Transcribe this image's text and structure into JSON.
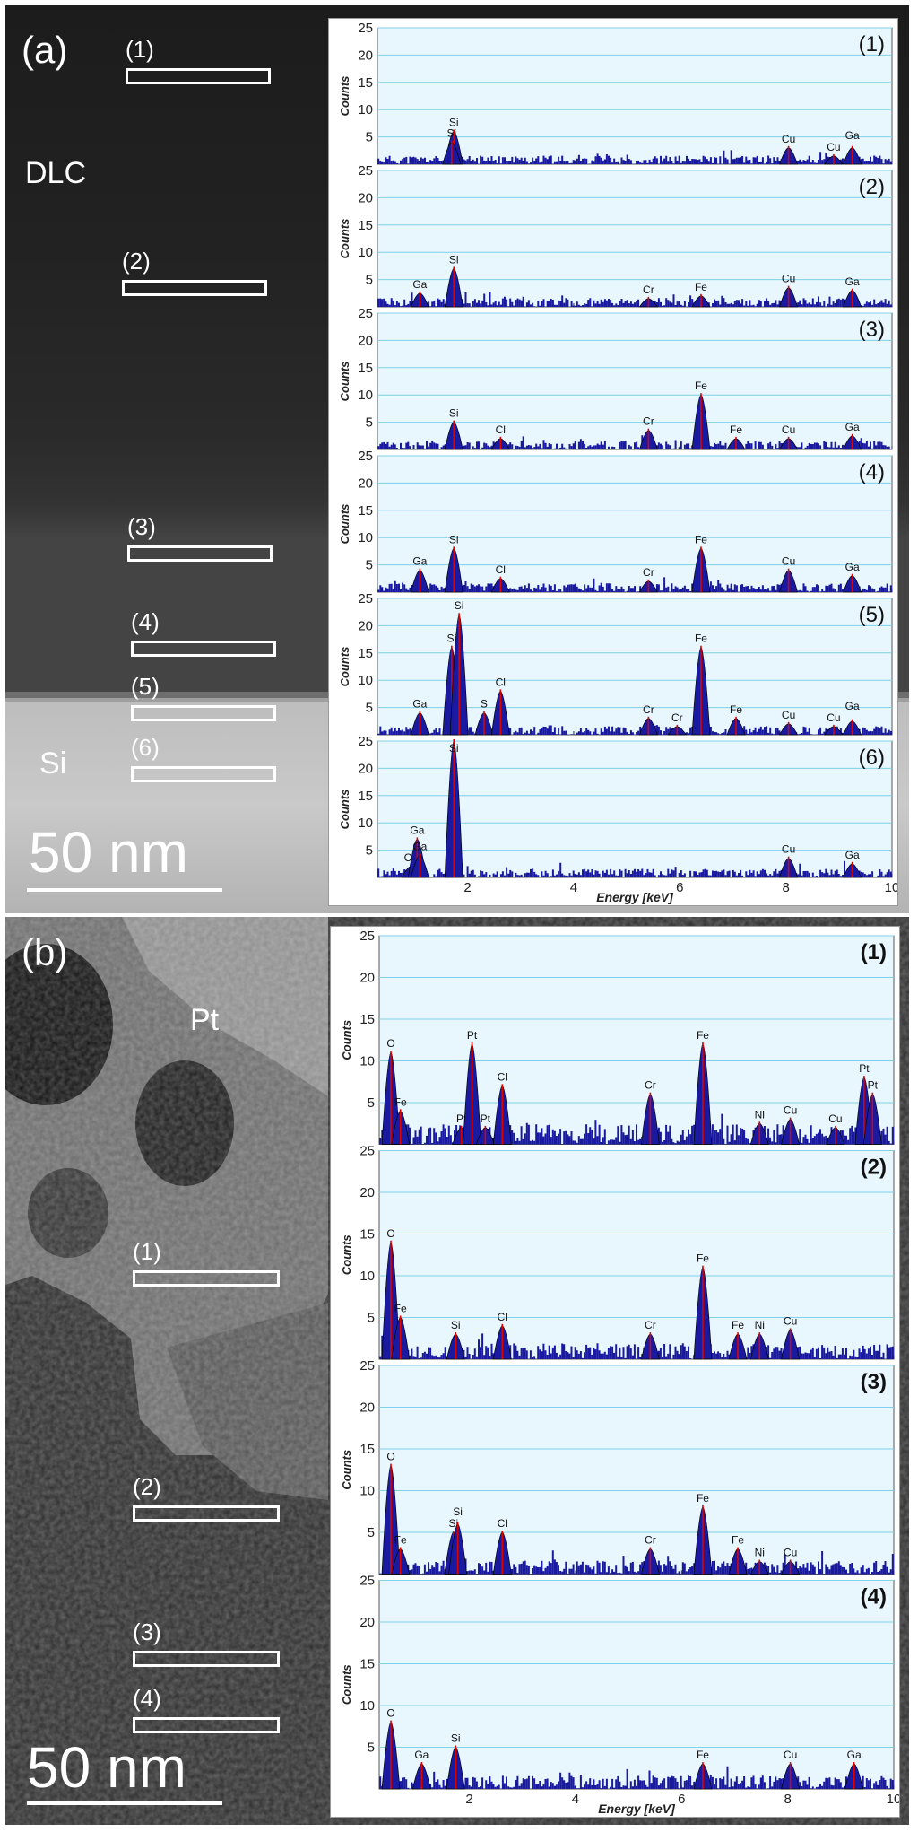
{
  "panel_a": {
    "letter": "(a)",
    "regions": [
      "(1)",
      "(2)",
      "(3)",
      "(4)",
      "(5)",
      "(6)"
    ],
    "layer_top": "DLC",
    "layer_bottom": "Si",
    "scale_label": "50 nm"
  },
  "panel_b": {
    "letter": "(b)",
    "regions": [
      "(1)",
      "(2)",
      "(3)",
      "(4)"
    ],
    "layer_top": "Pt",
    "scale_label": "50 nm"
  },
  "colors": {
    "plot_bg": "#e8f6fd",
    "grid": "#7fd0e8",
    "bars": "#1a1aa0",
    "marker": "#e00000"
  },
  "chart_data": [
    {
      "type": "bar",
      "panel": "a",
      "xlabel": "Energy [keV]",
      "ylabel": "Counts",
      "xlim": [
        0.3,
        10
      ],
      "ylim": [
        0,
        25
      ],
      "xticks": [
        2,
        4,
        6,
        8,
        10
      ],
      "yticks": [
        5,
        10,
        15,
        20,
        25
      ],
      "grid": true,
      "spectra": [
        {
          "name": "(1)",
          "peaks": [
            {
              "label": "Si",
              "x": 1.74,
              "y": 6
            },
            {
              "label": "Si",
              "x": 1.7,
              "y": 4
            },
            {
              "label": "Cu",
              "x": 8.05,
              "y": 3
            },
            {
              "label": "Cu",
              "x": 8.9,
              "y": 1.5
            },
            {
              "label": "Ga",
              "x": 9.25,
              "y": 3
            }
          ],
          "noise": 1
        },
        {
          "name": "(2)",
          "peaks": [
            {
              "label": "Ga",
              "x": 1.1,
              "y": 2.5
            },
            {
              "label": "Si",
              "x": 1.74,
              "y": 7
            },
            {
              "label": "Cr",
              "x": 5.41,
              "y": 1.5
            },
            {
              "label": "Fe",
              "x": 6.4,
              "y": 2
            },
            {
              "label": "Cu",
              "x": 8.05,
              "y": 3.5
            },
            {
              "label": "Ga",
              "x": 9.25,
              "y": 3
            }
          ],
          "noise": 1
        },
        {
          "name": "(3)",
          "peaks": [
            {
              "label": "Si",
              "x": 1.74,
              "y": 5
            },
            {
              "label": "Cl",
              "x": 2.62,
              "y": 2
            },
            {
              "label": "Cr",
              "x": 5.41,
              "y": 3.5
            },
            {
              "label": "Fe",
              "x": 6.4,
              "y": 10
            },
            {
              "label": "Fe",
              "x": 7.06,
              "y": 2
            },
            {
              "label": "Cu",
              "x": 8.05,
              "y": 2
            },
            {
              "label": "Ga",
              "x": 9.25,
              "y": 2.5
            }
          ],
          "noise": 1
        },
        {
          "name": "(4)",
          "peaks": [
            {
              "label": "Ga",
              "x": 1.1,
              "y": 4
            },
            {
              "label": "Si",
              "x": 1.74,
              "y": 8
            },
            {
              "label": "Cl",
              "x": 2.62,
              "y": 2.5
            },
            {
              "label": "Cr",
              "x": 5.41,
              "y": 2
            },
            {
              "label": "Fe",
              "x": 6.4,
              "y": 8
            },
            {
              "label": "Cu",
              "x": 8.05,
              "y": 4
            },
            {
              "label": "Ga",
              "x": 9.25,
              "y": 3
            }
          ],
          "noise": 1
        },
        {
          "name": "(5)",
          "peaks": [
            {
              "label": "Ga",
              "x": 1.1,
              "y": 4
            },
            {
              "label": "Si",
              "x": 1.7,
              "y": 16
            },
            {
              "label": "Si",
              "x": 1.84,
              "y": 22
            },
            {
              "label": "S",
              "x": 2.31,
              "y": 4
            },
            {
              "label": "Cl",
              "x": 2.62,
              "y": 8
            },
            {
              "label": "Cr",
              "x": 5.41,
              "y": 3
            },
            {
              "label": "Cr",
              "x": 5.95,
              "y": 1.5
            },
            {
              "label": "Fe",
              "x": 6.4,
              "y": 16
            },
            {
              "label": "Fe",
              "x": 7.06,
              "y": 3
            },
            {
              "label": "Cu",
              "x": 8.05,
              "y": 2
            },
            {
              "label": "Cu",
              "x": 8.9,
              "y": 1.5
            },
            {
              "label": "Ga",
              "x": 9.25,
              "y": 2.5
            }
          ],
          "noise": 1
        },
        {
          "name": "(6)",
          "peaks": [
            {
              "label": "Cu",
              "x": 0.93,
              "y": 2
            },
            {
              "label": "Ga",
              "x": 1.05,
              "y": 7
            },
            {
              "label": "Ga",
              "x": 1.1,
              "y": 4
            },
            {
              "label": "Si",
              "x": 1.74,
              "y": 25
            },
            {
              "label": "Cu",
              "x": 8.05,
              "y": 3.5
            },
            {
              "label": "Ga",
              "x": 9.25,
              "y": 2.5
            }
          ],
          "noise": 1
        }
      ]
    },
    {
      "type": "bar",
      "panel": "b",
      "xlabel": "Energy [keV]",
      "ylabel": "Counts",
      "xlim": [
        0.3,
        10
      ],
      "ylim": [
        0,
        25
      ],
      "xticks": [
        2,
        4,
        6,
        8,
        10
      ],
      "yticks": [
        5,
        10,
        15,
        20,
        25
      ],
      "grid": true,
      "spectra": [
        {
          "name": "(1)",
          "peaks": [
            {
              "label": "O",
              "x": 0.52,
              "y": 11
            },
            {
              "label": "Fe",
              "x": 0.7,
              "y": 4
            },
            {
              "label": "Pt",
              "x": 1.85,
              "y": 2
            },
            {
              "label": "Pt",
              "x": 2.05,
              "y": 12
            },
            {
              "label": "Pt",
              "x": 2.3,
              "y": 2
            },
            {
              "label": "Cl",
              "x": 2.62,
              "y": 7
            },
            {
              "label": "Cr",
              "x": 5.41,
              "y": 6
            },
            {
              "label": "Fe",
              "x": 6.4,
              "y": 12
            },
            {
              "label": "Ni",
              "x": 7.47,
              "y": 2.5
            },
            {
              "label": "Cu",
              "x": 8.05,
              "y": 3
            },
            {
              "label": "Cu",
              "x": 8.9,
              "y": 2
            },
            {
              "label": "Pt",
              "x": 9.44,
              "y": 8
            },
            {
              "label": "Pt",
              "x": 9.6,
              "y": 6
            }
          ],
          "noise": 1.5
        },
        {
          "name": "(2)",
          "peaks": [
            {
              "label": "O",
              "x": 0.52,
              "y": 14
            },
            {
              "label": "Fe",
              "x": 0.7,
              "y": 5
            },
            {
              "label": "Si",
              "x": 1.74,
              "y": 3
            },
            {
              "label": "Cl",
              "x": 2.62,
              "y": 4
            },
            {
              "label": "Cr",
              "x": 5.41,
              "y": 3
            },
            {
              "label": "Fe",
              "x": 6.4,
              "y": 11
            },
            {
              "label": "Fe",
              "x": 7.06,
              "y": 3
            },
            {
              "label": "Ni",
              "x": 7.47,
              "y": 3
            },
            {
              "label": "Cu",
              "x": 8.05,
              "y": 3.5
            }
          ],
          "noise": 1.2
        },
        {
          "name": "(3)",
          "peaks": [
            {
              "label": "O",
              "x": 0.52,
              "y": 13
            },
            {
              "label": "Fe",
              "x": 0.7,
              "y": 3
            },
            {
              "label": "Si",
              "x": 1.7,
              "y": 5
            },
            {
              "label": "Si",
              "x": 1.78,
              "y": 6
            },
            {
              "label": "Cl",
              "x": 2.62,
              "y": 5
            },
            {
              "label": "Cr",
              "x": 5.41,
              "y": 3
            },
            {
              "label": "Fe",
              "x": 6.4,
              "y": 8
            },
            {
              "label": "Fe",
              "x": 7.06,
              "y": 3
            },
            {
              "label": "Ni",
              "x": 7.47,
              "y": 1.5
            },
            {
              "label": "Cu",
              "x": 8.05,
              "y": 1.5
            }
          ],
          "noise": 1
        },
        {
          "name": "(4)",
          "peaks": [
            {
              "label": "O",
              "x": 0.52,
              "y": 8
            },
            {
              "label": "Ga",
              "x": 1.1,
              "y": 3
            },
            {
              "label": "Si",
              "x": 1.74,
              "y": 5
            },
            {
              "label": "Fe",
              "x": 6.4,
              "y": 3
            },
            {
              "label": "Cu",
              "x": 8.05,
              "y": 3
            },
            {
              "label": "Ga",
              "x": 9.25,
              "y": 3
            }
          ],
          "noise": 1
        }
      ]
    }
  ]
}
